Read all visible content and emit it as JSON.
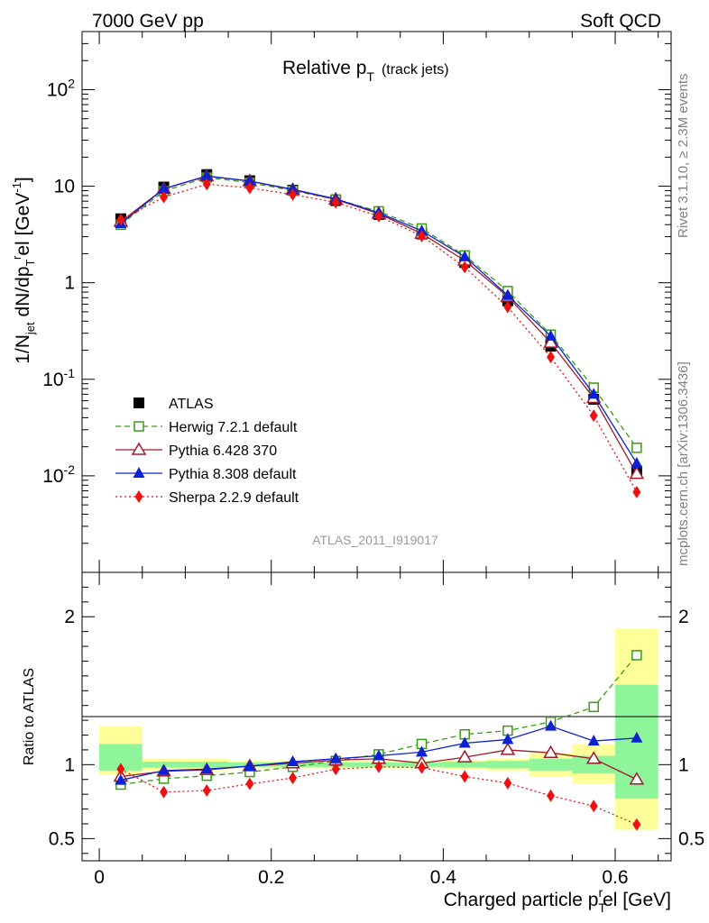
{
  "header": {
    "left": "7000 GeV pp",
    "right": "Soft QCD"
  },
  "side": {
    "rivet": "Rivet 3.1.10, ≥ 2.3M events",
    "mcplots": "mcplots.cern.ch [arXiv:1306.3436]"
  },
  "colors": {
    "atlas": "#000000",
    "herwig": "#3a9b13",
    "pythia6": "#a01a2d",
    "pythia8": "#0b22d4",
    "sherpa": "#ee1111",
    "band_inner": "#8ff59b",
    "band_outer": "#ffff99"
  },
  "chart_data": [
    {
      "type": "line",
      "title": "Relative p_T (track jets)",
      "title_main": "Relative p",
      "title_sub": "T",
      "title_extra": "(track jets)",
      "ylabel": "1/N_jet dN/dp_T^rel [GeV^-1]",
      "ylabel_parts": [
        "1/N",
        "jet",
        " dN/dp",
        "T",
        "r",
        "el [GeV",
        "-1",
        "]"
      ],
      "yscale": "log",
      "ylim": [
        0.001,
        400
      ],
      "xlim": [
        -0.02,
        0.665
      ],
      "ytick_labels": [
        "10^-2",
        "10^-1",
        "1",
        "10",
        "10^2"
      ],
      "watermark": "ATLAS_2011_I919017",
      "x": [
        0.025,
        0.075,
        0.125,
        0.175,
        0.225,
        0.275,
        0.325,
        0.375,
        0.425,
        0.475,
        0.525,
        0.575,
        0.625
      ],
      "legend_position": "bottom-left",
      "series": [
        {
          "name": "ATLAS",
          "key": "atlas",
          "marker": "square-filled",
          "style": "none",
          "values": [
            4.6,
            9.8,
            13.2,
            11.4,
            9.1,
            7.1,
            5.1,
            3.2,
            1.62,
            0.65,
            0.22,
            0.062,
            0.0112
          ]
        },
        {
          "name": "Herwig 7.2.1 default",
          "key": "herwig",
          "marker": "square-open",
          "style": "dashed",
          "values": [
            4.0,
            8.9,
            12.3,
            10.9,
            9.0,
            7.3,
            5.5,
            3.65,
            1.92,
            0.82,
            0.29,
            0.082,
            0.0195
          ]
        },
        {
          "name": "Pythia 6.428 370",
          "key": "pythia6",
          "marker": "triangle-open",
          "style": "solid",
          "values": [
            4.3,
            9.4,
            12.7,
            11.3,
            9.2,
            7.3,
            5.2,
            3.23,
            1.7,
            0.72,
            0.24,
            0.064,
            0.0105
          ]
        },
        {
          "name": "Pythia 8.308 default",
          "key": "pythia8",
          "marker": "triangle-filled",
          "style": "solid",
          "values": [
            4.1,
            9.4,
            12.8,
            11.3,
            9.3,
            7.4,
            5.3,
            3.45,
            1.86,
            0.74,
            0.28,
            0.07,
            0.0135
          ]
        },
        {
          "name": "Sherpa 2.2.9 default",
          "key": "sherpa",
          "marker": "diamond-filled",
          "style": "dotted",
          "values": [
            4.5,
            7.7,
            10.5,
            9.6,
            8.2,
            6.8,
            4.9,
            3.05,
            1.45,
            0.56,
            0.17,
            0.042,
            0.0068
          ]
        }
      ]
    },
    {
      "type": "line",
      "ylabel": "Ratio to ATLAS",
      "xlabel": "Charged particle p_T^rel [GeV]",
      "xlabel_main": "Charged particle p",
      "xlabel_sub": "T",
      "xlabel_sup": "r",
      "xlabel_tail": "el [GeV]",
      "ylim": [
        0.35,
        2.3
      ],
      "xlim": [
        -0.02,
        0.665
      ],
      "xticks": [
        0,
        0.2,
        0.4,
        0.6
      ],
      "xtick_labels": [
        "0",
        "0.2",
        "0.4",
        "0.6"
      ],
      "yticks": [
        0.5,
        1,
        2
      ],
      "ytick_labels": [
        "0.5",
        "1",
        "2"
      ],
      "x": [
        0.025,
        0.075,
        0.125,
        0.175,
        0.225,
        0.275,
        0.325,
        0.375,
        0.425,
        0.475,
        0.525,
        0.575,
        0.625
      ],
      "bands": {
        "edges": [
          0.0,
          0.05,
          0.1,
          0.15,
          0.2,
          0.25,
          0.3,
          0.35,
          0.4,
          0.45,
          0.5,
          0.55,
          0.6,
          0.65
        ],
        "inner_lo": [
          0.96,
          0.98,
          0.98,
          0.985,
          0.985,
          0.985,
          0.985,
          0.985,
          0.98,
          0.975,
          0.96,
          0.94,
          0.77
        ],
        "inner_hi": [
          1.14,
          1.02,
          1.02,
          1.015,
          1.015,
          1.015,
          1.015,
          1.015,
          1.02,
          1.025,
          1.04,
          1.06,
          1.54
        ],
        "outer_lo": [
          0.93,
          0.96,
          0.96,
          0.975,
          0.975,
          0.975,
          0.975,
          0.975,
          0.97,
          0.96,
          0.92,
          0.87,
          0.56
        ],
        "outer_hi": [
          1.26,
          1.04,
          1.04,
          1.025,
          1.025,
          1.025,
          1.025,
          1.025,
          1.03,
          1.04,
          1.08,
          1.14,
          1.92
        ]
      },
      "series": [
        {
          "name": "Herwig 7.2.1 default",
          "key": "herwig",
          "marker": "square-open",
          "style": "dashed",
          "values": [
            0.865,
            0.905,
            0.925,
            0.95,
            0.985,
            1.025,
            1.07,
            1.14,
            1.205,
            1.23,
            1.29,
            1.39,
            1.74
          ]
        },
        {
          "name": "Pythia 6.428 370",
          "key": "pythia6",
          "marker": "triangle-open",
          "style": "solid",
          "values": [
            0.92,
            0.955,
            0.965,
            0.99,
            1.01,
            1.03,
            1.04,
            1.01,
            1.05,
            1.1,
            1.08,
            1.04,
            0.9
          ]
        },
        {
          "name": "Pythia 8.308 default",
          "key": "pythia8",
          "marker": "triangle-filled",
          "style": "solid",
          "values": [
            0.895,
            0.96,
            0.97,
            0.99,
            1.02,
            1.04,
            1.06,
            1.085,
            1.145,
            1.17,
            1.26,
            1.16,
            1.18
          ]
        },
        {
          "name": "Sherpa 2.2.9 default",
          "key": "sherpa",
          "marker": "diamond-filled",
          "style": "dotted",
          "values": [
            0.97,
            0.815,
            0.825,
            0.87,
            0.91,
            0.97,
            0.985,
            0.98,
            0.92,
            0.875,
            0.79,
            0.72,
            0.595
          ]
        }
      ]
    }
  ]
}
